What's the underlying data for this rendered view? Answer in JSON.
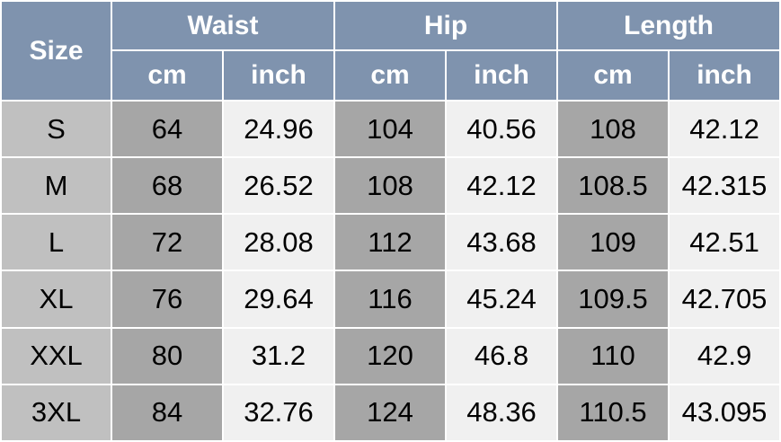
{
  "header": {
    "size": "Size",
    "groups": [
      "Waist",
      "Hip",
      "Length"
    ],
    "units": [
      "cm",
      "inch",
      "cm",
      "inch",
      "cm",
      "inch"
    ]
  },
  "rows": [
    [
      "S",
      "64",
      "24.96",
      "104",
      "40.56",
      "108",
      "42.12"
    ],
    [
      "M",
      "68",
      "26.52",
      "108",
      "42.12",
      "108.5",
      "42.315"
    ],
    [
      "L",
      "72",
      "28.08",
      "112",
      "43.68",
      "109",
      "42.51"
    ],
    [
      "XL",
      "76",
      "29.64",
      "116",
      "45.24",
      "109.5",
      "42.705"
    ],
    [
      "XXL",
      "80",
      "31.2",
      "120",
      "46.8",
      "110",
      "42.9"
    ],
    [
      "3XL",
      "84",
      "32.76",
      "124",
      "48.36",
      "110.5",
      "43.095"
    ]
  ],
  "colors": {
    "header": "#7f93ae",
    "size_col": "#c0c0c0",
    "cm_col": "#a6a6a6",
    "inch_col": "#f0f0f0"
  }
}
